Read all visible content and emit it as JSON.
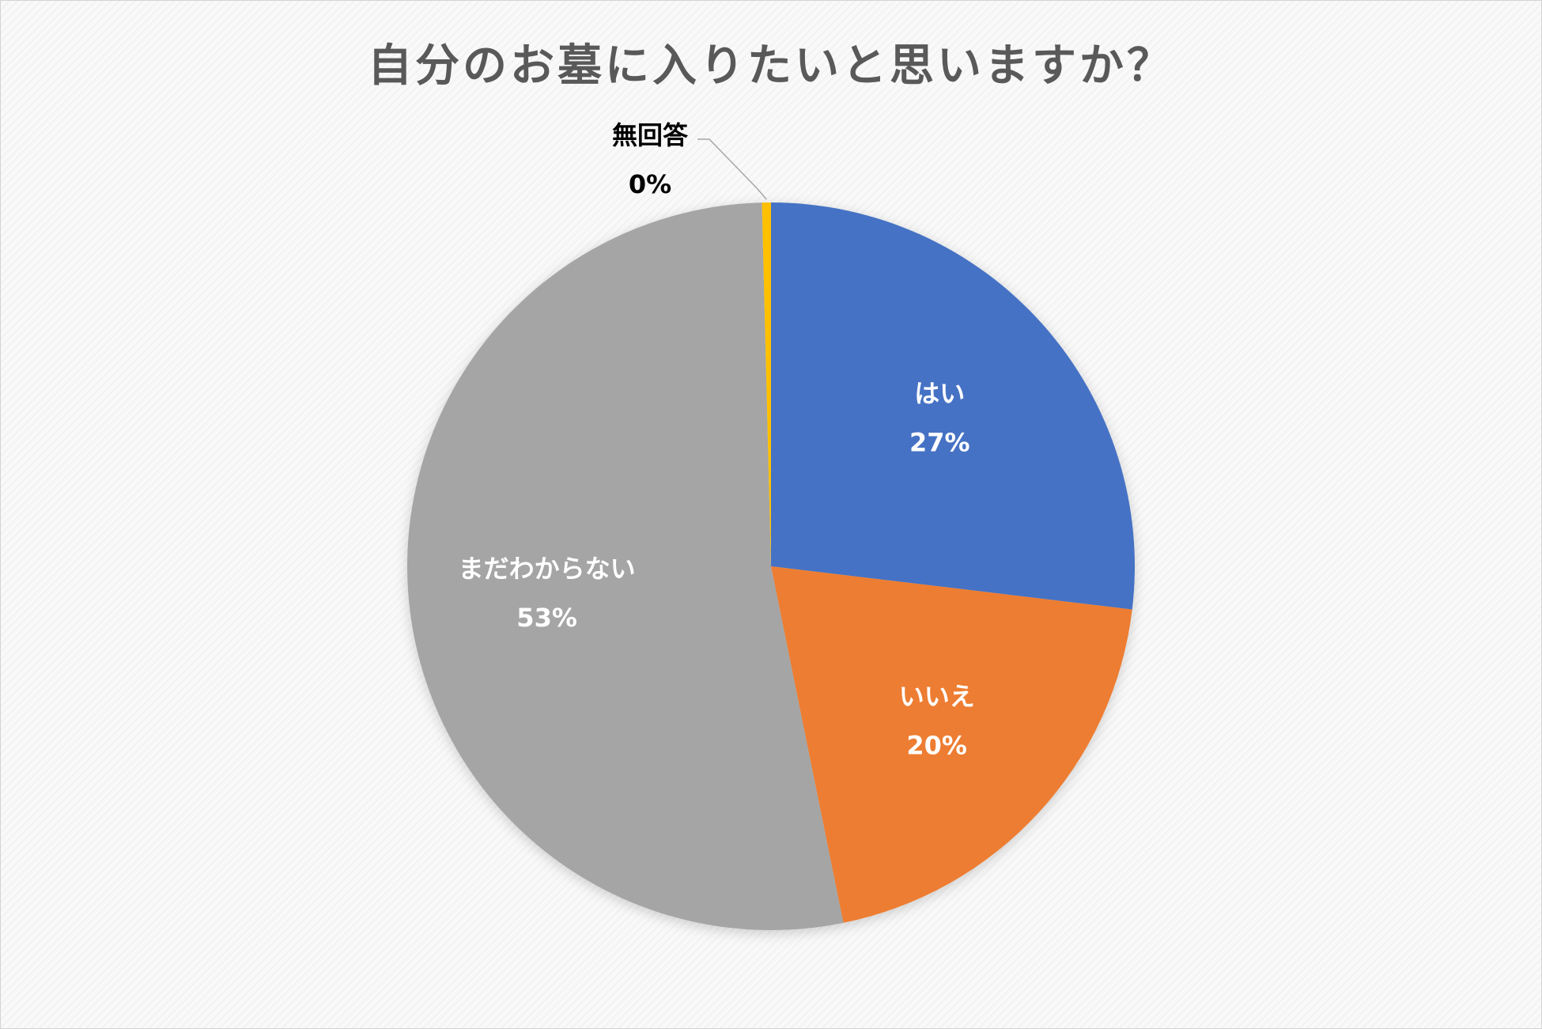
{
  "chart_data": {
    "type": "pie",
    "title": "自分のお墓に入りたいと思いますか？",
    "legend": "none",
    "start_angle": "top (12 o'clock), clockwise",
    "slices": [
      {
        "label": "はい",
        "value": 27,
        "value_label": "27%",
        "color": "#4472C4",
        "label_color": "#ffffff"
      },
      {
        "label": "いいえ",
        "value": 20,
        "value_label": "20%",
        "color": "#ED7D31",
        "label_color": "#ffffff"
      },
      {
        "label": "まだわからない",
        "value": 53,
        "value_label": "53%",
        "color": "#A5A5A5",
        "label_color": "#ffffff"
      },
      {
        "label": "無回答",
        "value": 0.4,
        "value_label": "0%",
        "color": "#FFC000",
        "label_color": "#000000"
      }
    ]
  }
}
